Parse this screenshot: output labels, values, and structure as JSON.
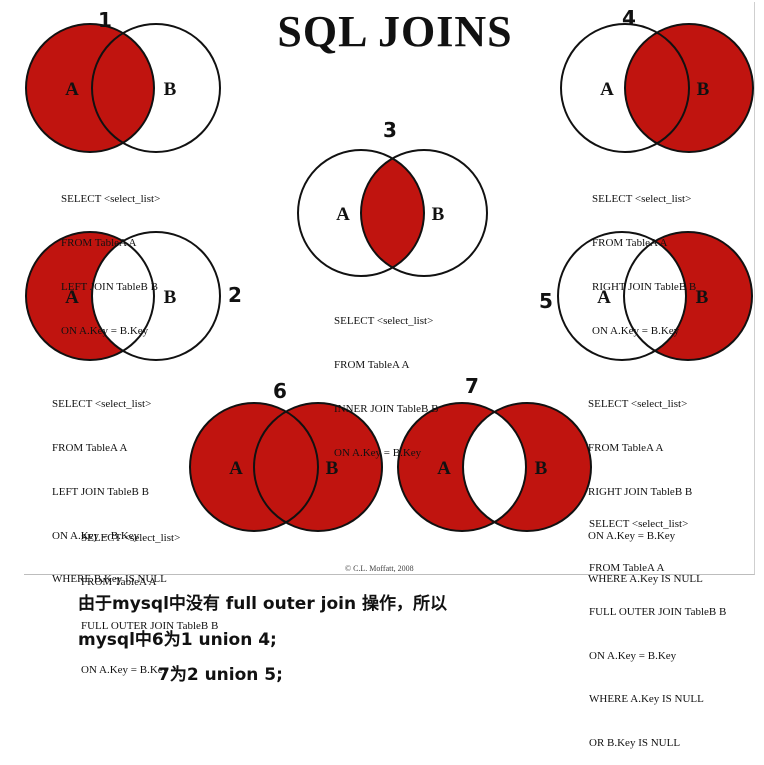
{
  "title": "SQL JOINS",
  "copyright": "© C.L. Moffatt, 2008",
  "labels": {
    "a": "A",
    "b": "B"
  },
  "colors": {
    "fill": "#c0140f",
    "stroke": "#111111",
    "background": "#ffffff"
  },
  "diagrams": [
    {
      "number": "1",
      "fill": "left",
      "sql": [
        "SELECT <select_list>",
        "FROM TableA A",
        "LEFT JOIN TableB B",
        "ON A.Key = B.Key"
      ]
    },
    {
      "number": "2",
      "fill": "left-only",
      "sql": [
        "SELECT <select_list>",
        "FROM TableA A",
        "LEFT JOIN TableB B",
        "ON A.Key = B.Key",
        "WHERE B.Key IS NULL"
      ]
    },
    {
      "number": "3",
      "fill": "inner",
      "sql": [
        "SELECT <select_list>",
        "FROM TableA A",
        "INNER JOIN TableB B",
        "ON A.Key = B.Key"
      ]
    },
    {
      "number": "4",
      "fill": "right",
      "sql": [
        "SELECT <select_list>",
        "FROM TableA A",
        "RIGHT JOIN TableB B",
        "ON A.Key = B.Key"
      ]
    },
    {
      "number": "5",
      "fill": "right-only",
      "sql": [
        "SELECT <select_list>",
        "FROM TableA A",
        "RIGHT JOIN TableB B",
        "ON A.Key = B.Key",
        "WHERE A.Key IS NULL"
      ]
    },
    {
      "number": "6",
      "fill": "full",
      "sql": [
        "SELECT <select_list>",
        "FROM TableA A",
        "FULL OUTER JOIN TableB B",
        "ON A.Key = B.Key"
      ]
    },
    {
      "number": "7",
      "fill": "full-excl",
      "sql": [
        "SELECT <select_list>",
        "FROM TableA A",
        "FULL OUTER JOIN TableB B",
        "ON A.Key = B.Key",
        "WHERE A.Key IS NULL",
        "OR B.Key IS NULL"
      ]
    }
  ],
  "notes": [
    "由于mysql中没有 full outer join 操作，所以",
    "mysql中6为1 union 4;",
    "7为2 union 5;"
  ]
}
